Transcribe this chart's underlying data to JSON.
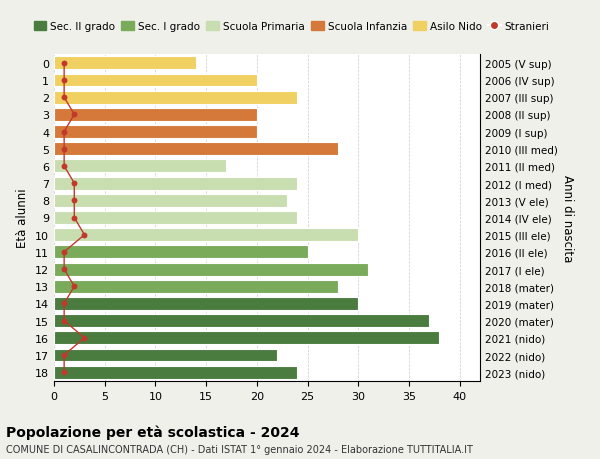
{
  "ages": [
    18,
    17,
    16,
    15,
    14,
    13,
    12,
    11,
    10,
    9,
    8,
    7,
    6,
    5,
    4,
    3,
    2,
    1,
    0
  ],
  "years": [
    "2005 (V sup)",
    "2006 (IV sup)",
    "2007 (III sup)",
    "2008 (II sup)",
    "2009 (I sup)",
    "2010 (III med)",
    "2011 (II med)",
    "2012 (I med)",
    "2013 (V ele)",
    "2014 (IV ele)",
    "2015 (III ele)",
    "2016 (II ele)",
    "2017 (I ele)",
    "2018 (mater)",
    "2019 (mater)",
    "2020 (mater)",
    "2021 (nido)",
    "2022 (nido)",
    "2023 (nido)"
  ],
  "values": [
    24,
    22,
    38,
    37,
    30,
    28,
    31,
    25,
    30,
    24,
    23,
    24,
    17,
    28,
    20,
    20,
    24,
    20,
    14
  ],
  "bar_colors": [
    "#4a7c3f",
    "#4a7c3f",
    "#4a7c3f",
    "#4a7c3f",
    "#4a7c3f",
    "#7aab5a",
    "#7aab5a",
    "#7aab5a",
    "#c8ddb0",
    "#c8ddb0",
    "#c8ddb0",
    "#c8ddb0",
    "#c8ddb0",
    "#d4793a",
    "#d4793a",
    "#d4793a",
    "#f0d060",
    "#f0d060",
    "#f0d060"
  ],
  "stranieri": [
    1,
    1,
    3,
    1,
    1,
    2,
    1,
    1,
    3,
    2,
    2,
    2,
    1,
    1,
    1,
    2,
    1,
    1,
    1
  ],
  "legend_labels": [
    "Sec. II grado",
    "Sec. I grado",
    "Scuola Primaria",
    "Scuola Infanzia",
    "Asilo Nido",
    "Stranieri"
  ],
  "legend_colors": [
    "#4a7c3f",
    "#7aab5a",
    "#c8ddb0",
    "#d4793a",
    "#f0d060",
    "#c0392b"
  ],
  "xlabel_bottom": "Popolazione per età scolastica - 2024",
  "subtitle": "COMUNE DI CASALINCONTRADA (CH) - Dati ISTAT 1° gennaio 2024 - Elaborazione TUTTITALIA.IT",
  "ylabel_left": "Età alunni",
  "ylabel_right": "Anni di nascita",
  "xlim": [
    0,
    42
  ],
  "xticks": [
    0,
    5,
    10,
    15,
    20,
    25,
    30,
    35,
    40
  ],
  "bg_color": "#f0f0eb",
  "bar_area_color": "#ffffff",
  "stranieri_color": "#c0392b",
  "stranieri_line_color": "#c0392b"
}
